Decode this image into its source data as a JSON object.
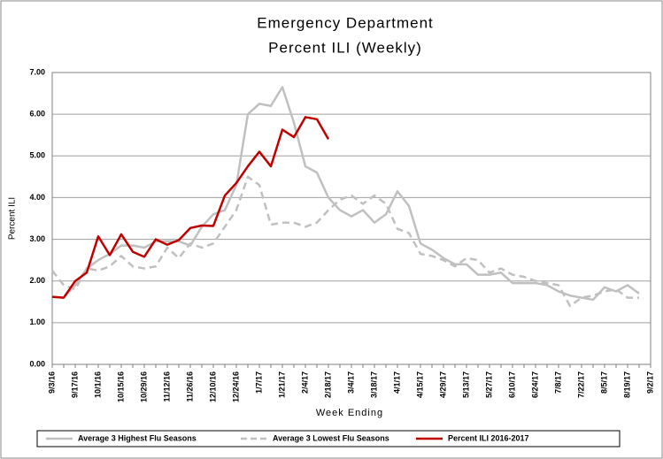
{
  "chart_data": {
    "type": "line",
    "title": "Emergency Department",
    "subtitle": "Percent ILI (Weekly)",
    "x_label": "Week Ending",
    "y_label": "Percent ILI",
    "categories": [
      "9/3/16",
      null,
      "9/17/16",
      null,
      "10/1/16",
      null,
      "10/15/16",
      null,
      "10/29/16",
      null,
      "11/12/16",
      null,
      "11/26/16",
      null,
      "12/10/16",
      null,
      "12/24/16",
      null,
      "1/7/17",
      null,
      "1/21/17",
      null,
      "2/4/17",
      null,
      "2/18/17",
      null,
      "3/4/17",
      null,
      "3/18/17",
      null,
      "4/1/17",
      null,
      "4/15/17",
      null,
      "4/29/17",
      null,
      "5/13/17",
      null,
      "5/27/17",
      null,
      "6/10/17",
      null,
      "6/24/17",
      null,
      "7/8/17",
      null,
      "7/22/17",
      null,
      "8/5/17",
      null,
      "8/19/17",
      null,
      "9/2/17"
    ],
    "series": [
      {
        "name": "Average 3 Highest Flu Seasons",
        "color": "#c0c0c0",
        "style": "solid",
        "values": [
          1.62,
          1.6,
          1.9,
          2.3,
          2.5,
          2.65,
          2.85,
          2.85,
          2.8,
          2.95,
          2.95,
          2.95,
          2.85,
          3.3,
          3.6,
          3.7,
          4.3,
          6.0,
          6.25,
          6.2,
          6.65,
          5.8,
          4.75,
          4.6,
          4.0,
          3.7,
          3.55,
          3.7,
          3.4,
          3.6,
          4.15,
          3.8,
          2.9,
          2.75,
          2.55,
          2.4,
          2.4,
          2.15,
          2.15,
          2.2,
          1.95,
          1.95,
          1.95,
          1.9,
          1.75,
          1.65,
          1.6,
          1.55,
          1.85,
          1.75,
          1.9,
          1.7,
          null
        ]
      },
      {
        "name": "Average 3 Lowest Flu Seasons",
        "color": "#c0c0c0",
        "style": "dashed",
        "values": [
          2.25,
          1.9,
          1.8,
          2.3,
          2.25,
          2.35,
          2.6,
          2.35,
          2.3,
          2.35,
          2.8,
          2.55,
          2.9,
          2.8,
          2.9,
          3.3,
          3.7,
          4.5,
          4.3,
          3.35,
          3.4,
          3.4,
          3.3,
          3.4,
          3.7,
          3.95,
          4.05,
          3.85,
          4.05,
          3.85,
          3.25,
          3.15,
          2.65,
          2.6,
          2.5,
          2.35,
          2.55,
          2.5,
          2.2,
          2.3,
          2.15,
          2.1,
          2.0,
          1.95,
          1.9,
          1.4,
          1.6,
          1.65,
          1.75,
          1.8,
          1.6,
          1.6,
          null
        ]
      },
      {
        "name": "Percent ILI 2016-2017",
        "color": "#c00000",
        "style": "solid",
        "values": [
          1.62,
          1.6,
          2.0,
          2.2,
          3.07,
          2.62,
          3.12,
          2.7,
          2.58,
          3.0,
          2.87,
          2.98,
          3.27,
          3.33,
          3.32,
          4.05,
          4.35,
          4.75,
          5.1,
          4.75,
          5.63,
          5.45,
          5.93,
          5.88,
          5.4,
          null,
          null,
          null,
          null,
          null,
          null,
          null,
          null,
          null,
          null,
          null,
          null,
          null,
          null,
          null,
          null,
          null,
          null,
          null,
          null,
          null,
          null,
          null,
          null,
          null,
          null,
          null,
          null
        ]
      }
    ],
    "ylim": [
      0,
      7
    ],
    "yticks": [
      {
        "value": 0,
        "label": "0.00"
      },
      {
        "value": 1,
        "label": "1.00"
      },
      {
        "value": 2,
        "label": "2.00"
      },
      {
        "value": 3,
        "label": "3.00"
      },
      {
        "value": 4,
        "label": "4.00"
      },
      {
        "value": 5,
        "label": "5.00"
      },
      {
        "value": 6,
        "label": "6.00"
      },
      {
        "value": 7,
        "label": "7.00"
      }
    ],
    "grid": true,
    "legend": "bottom"
  }
}
